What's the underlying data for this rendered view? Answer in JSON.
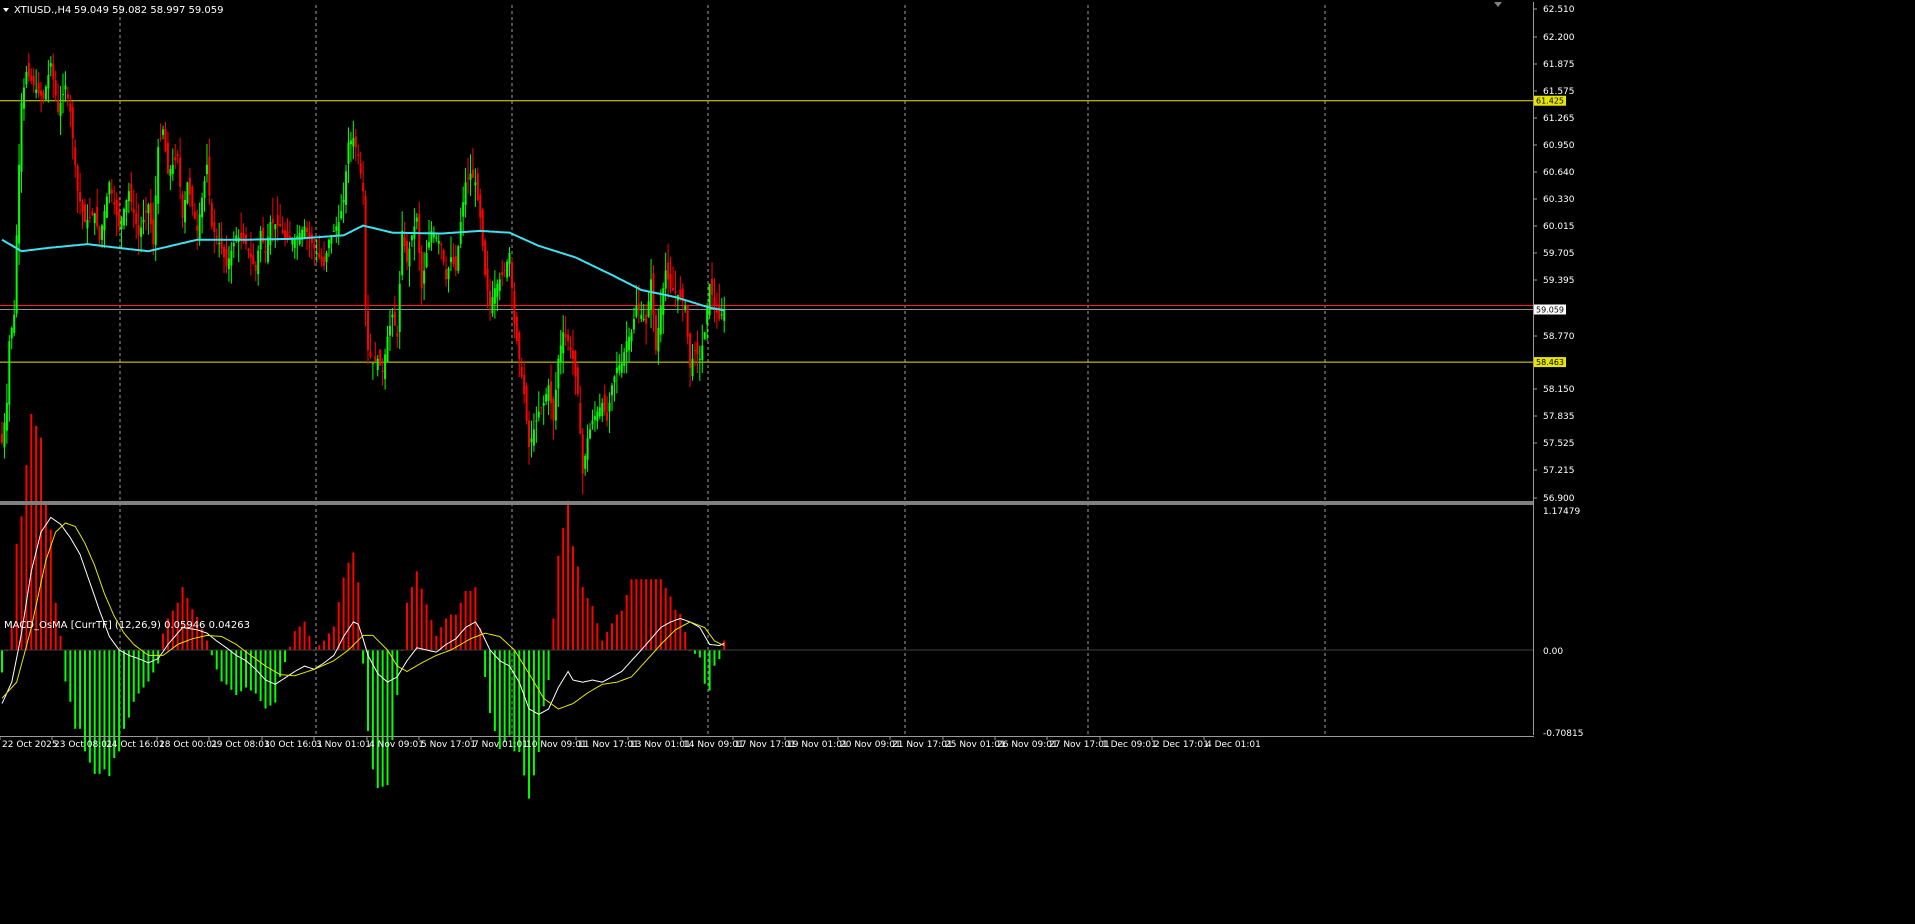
{
  "header": {
    "symbol_label": "XTIUSD.,H4",
    "ohlc": "59.049 59.082 58.997 59.059",
    "indicator_label": "MACD_OsMA [CurrTF] (12,26,9) 0.05946 0.04263"
  },
  "colors": {
    "background": "#000000",
    "bull": "#00ff00",
    "bear": "#ff0000",
    "ma": "#40e0f0",
    "level_line": "#e6e600",
    "price_line": "#ff2020",
    "grid": "#c8c8c8",
    "macd_line": "#ffffff",
    "signal_line": "#e6e600",
    "separator": "#808080"
  },
  "chart_data": [
    {
      "type": "candlestick",
      "name": "XTIUSD.,H4",
      "ylim": [
        56.9,
        62.51
      ],
      "y_ticks": [
        "62.510",
        "62.200",
        "61.875",
        "61.575",
        "61.265",
        "60.950",
        "60.640",
        "60.330",
        "60.015",
        "59.705",
        "59.395",
        "58.770",
        "58.150",
        "57.835",
        "57.525",
        "57.215",
        "56.900"
      ],
      "horizontal_levels": [
        {
          "value": 61.425,
          "label": "61.425"
        },
        {
          "value": 58.463,
          "label": "58.463"
        }
      ],
      "price_marker": {
        "value": 59.059,
        "label": "59.059"
      },
      "x_labels": [
        "22 Oct 2025",
        "23 Oct 08:01",
        "24 Oct 16:01",
        "28 Oct 00:01",
        "29 Oct 08:01",
        "30 Oct 16:01",
        "3 Nov 01:01",
        "4 Nov 09:01",
        "5 Nov 17:01",
        "7 Nov 01:01",
        "10 Nov 09:01",
        "11 Nov 17:01",
        "13 Nov 01:01",
        "14 Nov 09:01",
        "17 Nov 17:01",
        "19 Nov 01:01",
        "20 Nov 09:01",
        "21 Nov 17:01",
        "25 Nov 01:01",
        "26 Nov 09:01",
        "27 Nov 17:01",
        "1 Dec 09:01",
        "2 Dec 17:01",
        "4 Dec 01:01"
      ],
      "close_anchors": [
        [
          0,
          57.55
        ],
        [
          2,
          58.0
        ],
        [
          3,
          58.7
        ],
        [
          5,
          59.0
        ],
        [
          6,
          59.9
        ],
        [
          7,
          60.7
        ],
        [
          8,
          61.4
        ],
        [
          10,
          61.75
        ],
        [
          14,
          61.55
        ],
        [
          17,
          61.45
        ],
        [
          20,
          61.85
        ],
        [
          23,
          61.3
        ],
        [
          26,
          61.6
        ],
        [
          28,
          61.3
        ],
        [
          31,
          60.4
        ],
        [
          34,
          60.05
        ],
        [
          38,
          60.15
        ],
        [
          40,
          59.85
        ],
        [
          44,
          60.5
        ],
        [
          48,
          60.0
        ],
        [
          52,
          60.4
        ],
        [
          56,
          59.9
        ],
        [
          60,
          60.25
        ],
        [
          62,
          59.8
        ],
        [
          64,
          60.9
        ],
        [
          66,
          61.1
        ],
        [
          68,
          60.6
        ],
        [
          72,
          60.8
        ],
        [
          74,
          60.1
        ],
        [
          76,
          60.5
        ],
        [
          80,
          59.95
        ],
        [
          84,
          60.7
        ],
        [
          86,
          60.0
        ],
        [
          90,
          59.75
        ],
        [
          92,
          59.55
        ],
        [
          96,
          59.9
        ],
        [
          100,
          59.8
        ],
        [
          104,
          59.5
        ],
        [
          106,
          59.95
        ],
        [
          108,
          59.7
        ],
        [
          110,
          60.05
        ],
        [
          114,
          60.0
        ],
        [
          116,
          59.85
        ],
        [
          120,
          59.85
        ],
        [
          124,
          60.0
        ],
        [
          128,
          59.75
        ],
        [
          132,
          59.55
        ],
        [
          134,
          59.85
        ],
        [
          138,
          60.05
        ],
        [
          140,
          60.3
        ],
        [
          142,
          60.95
        ],
        [
          144,
          61.0
        ],
        [
          146,
          60.8
        ],
        [
          148,
          60.4
        ],
        [
          149,
          59.1
        ],
        [
          150,
          58.6
        ],
        [
          152,
          58.45
        ],
        [
          154,
          58.5
        ],
        [
          156,
          58.35
        ],
        [
          158,
          58.75
        ],
        [
          160,
          59.0
        ],
        [
          162,
          58.75
        ],
        [
          164,
          59.95
        ],
        [
          166,
          59.6
        ],
        [
          168,
          59.9
        ],
        [
          170,
          60.1
        ],
        [
          172,
          59.3
        ],
        [
          174,
          59.7
        ],
        [
          176,
          59.95
        ],
        [
          180,
          59.8
        ],
        [
          182,
          59.4
        ],
        [
          184,
          59.65
        ],
        [
          186,
          59.5
        ],
        [
          188,
          60.05
        ],
        [
          190,
          60.5
        ],
        [
          192,
          60.6
        ],
        [
          194,
          60.5
        ],
        [
          196,
          60.1
        ],
        [
          198,
          59.45
        ],
        [
          200,
          59.1
        ],
        [
          202,
          59.3
        ],
        [
          206,
          59.5
        ],
        [
          208,
          59.7
        ],
        [
          210,
          58.9
        ],
        [
          212,
          58.5
        ],
        [
          214,
          58.1
        ],
        [
          216,
          57.5
        ],
        [
          218,
          57.7
        ],
        [
          220,
          57.9
        ],
        [
          222,
          58.0
        ],
        [
          224,
          58.2
        ],
        [
          226,
          57.8
        ],
        [
          228,
          58.5
        ],
        [
          230,
          58.8
        ],
        [
          232,
          58.7
        ],
        [
          234,
          58.5
        ],
        [
          236,
          58.1
        ],
        [
          238,
          57.2
        ],
        [
          240,
          57.6
        ],
        [
          242,
          57.8
        ],
        [
          244,
          57.9
        ],
        [
          246,
          58.0
        ],
        [
          248,
          57.8
        ],
        [
          250,
          58.2
        ],
        [
          252,
          58.4
        ],
        [
          254,
          58.45
        ],
        [
          256,
          58.7
        ],
        [
          258,
          58.8
        ],
        [
          260,
          59.1
        ],
        [
          262,
          59.0
        ],
        [
          264,
          58.9
        ],
        [
          266,
          59.4
        ],
        [
          268,
          58.6
        ],
        [
          270,
          59.1
        ],
        [
          272,
          59.5
        ],
        [
          274,
          59.3
        ],
        [
          278,
          59.2
        ],
        [
          280,
          59.1
        ],
        [
          282,
          58.4
        ],
        [
          284,
          58.6
        ],
        [
          286,
          58.5
        ],
        [
          288,
          58.8
        ],
        [
          290,
          59.35
        ],
        [
          292,
          59.1
        ],
        [
          294,
          58.95
        ],
        [
          296,
          59.059
        ]
      ],
      "ma_anchors": [
        [
          0,
          59.85
        ],
        [
          8,
          59.72
        ],
        [
          20,
          59.76
        ],
        [
          35,
          59.8
        ],
        [
          50,
          59.75
        ],
        [
          60,
          59.72
        ],
        [
          80,
          59.85
        ],
        [
          100,
          59.85
        ],
        [
          120,
          59.86
        ],
        [
          140,
          59.9
        ],
        [
          148,
          60.01
        ],
        [
          160,
          59.93
        ],
        [
          180,
          59.92
        ],
        [
          196,
          59.95
        ],
        [
          208,
          59.93
        ],
        [
          220,
          59.78
        ],
        [
          235,
          59.65
        ],
        [
          250,
          59.45
        ],
        [
          262,
          59.28
        ],
        [
          276,
          59.2
        ],
        [
          290,
          59.08
        ],
        [
          296,
          59.05
        ]
      ],
      "n_bars": 297
    },
    {
      "type": "histogram+lines",
      "name": "MACD_OsMA [CurrTF] (12,26,9)",
      "ylim": [
        -0.70815,
        1.17479
      ],
      "y_ticks": [
        "1.17479",
        "0.00",
        "-0.70815"
      ],
      "values": {
        "macd": 0.05946,
        "signal": 0.04263
      },
      "macd_anchors": [
        [
          0,
          -0.5
        ],
        [
          4,
          -0.3
        ],
        [
          8,
          0.15
        ],
        [
          12,
          0.7
        ],
        [
          16,
          1.05
        ],
        [
          20,
          1.18
        ],
        [
          24,
          1.12
        ],
        [
          28,
          1.0
        ],
        [
          32,
          0.85
        ],
        [
          36,
          0.6
        ],
        [
          40,
          0.35
        ],
        [
          44,
          0.12
        ],
        [
          48,
          0.0
        ],
        [
          52,
          -0.05
        ],
        [
          56,
          -0.08
        ],
        [
          60,
          -0.12
        ],
        [
          64,
          -0.08
        ],
        [
          68,
          0.05
        ],
        [
          74,
          0.2
        ],
        [
          80,
          0.18
        ],
        [
          84,
          0.15
        ],
        [
          88,
          0.08
        ],
        [
          92,
          0.02
        ],
        [
          96,
          -0.05
        ],
        [
          100,
          -0.1
        ],
        [
          104,
          -0.18
        ],
        [
          108,
          -0.28
        ],
        [
          112,
          -0.32
        ],
        [
          116,
          -0.26
        ],
        [
          120,
          -0.2
        ],
        [
          124,
          -0.15
        ],
        [
          128,
          -0.18
        ],
        [
          132,
          -0.12
        ],
        [
          136,
          -0.05
        ],
        [
          140,
          0.12
        ],
        [
          144,
          0.25
        ],
        [
          146,
          0.23
        ],
        [
          148,
          0.1
        ],
        [
          150,
          -0.05
        ],
        [
          154,
          -0.22
        ],
        [
          158,
          -0.3
        ],
        [
          162,
          -0.25
        ],
        [
          166,
          -0.1
        ],
        [
          170,
          0.02
        ],
        [
          174,
          0.0
        ],
        [
          178,
          -0.02
        ],
        [
          182,
          0.05
        ],
        [
          186,
          0.1
        ],
        [
          190,
          0.2
        ],
        [
          194,
          0.25
        ],
        [
          196,
          0.18
        ],
        [
          200,
          0.0
        ],
        [
          204,
          -0.1
        ],
        [
          208,
          -0.15
        ],
        [
          212,
          -0.3
        ],
        [
          216,
          -0.55
        ],
        [
          220,
          -0.6
        ],
        [
          224,
          -0.55
        ],
        [
          228,
          -0.35
        ],
        [
          232,
          -0.2
        ],
        [
          234,
          -0.28
        ],
        [
          238,
          -0.3
        ],
        [
          242,
          -0.28
        ],
        [
          246,
          -0.3
        ],
        [
          250,
          -0.25
        ],
        [
          254,
          -0.2
        ],
        [
          258,
          -0.1
        ],
        [
          262,
          0.0
        ],
        [
          266,
          0.1
        ],
        [
          270,
          0.2
        ],
        [
          274,
          0.25
        ],
        [
          278,
          0.28
        ],
        [
          282,
          0.25
        ],
        [
          286,
          0.2
        ],
        [
          290,
          0.05
        ],
        [
          294,
          0.04
        ],
        [
          296,
          0.06
        ]
      ],
      "signal_anchors": [
        [
          0,
          -0.45
        ],
        [
          6,
          -0.3
        ],
        [
          12,
          0.2
        ],
        [
          18,
          0.8
        ],
        [
          22,
          1.05
        ],
        [
          26,
          1.13
        ],
        [
          30,
          1.1
        ],
        [
          34,
          0.95
        ],
        [
          38,
          0.75
        ],
        [
          42,
          0.5
        ],
        [
          46,
          0.3
        ],
        [
          50,
          0.15
        ],
        [
          54,
          0.05
        ],
        [
          60,
          -0.05
        ],
        [
          66,
          -0.05
        ],
        [
          72,
          0.05
        ],
        [
          78,
          0.1
        ],
        [
          84,
          0.13
        ],
        [
          90,
          0.12
        ],
        [
          96,
          0.05
        ],
        [
          102,
          -0.05
        ],
        [
          108,
          -0.15
        ],
        [
          114,
          -0.23
        ],
        [
          120,
          -0.24
        ],
        [
          128,
          -0.18
        ],
        [
          136,
          -0.1
        ],
        [
          142,
          0.0
        ],
        [
          148,
          0.13
        ],
        [
          152,
          0.13
        ],
        [
          158,
          0.0
        ],
        [
          162,
          -0.15
        ],
        [
          166,
          -0.2
        ],
        [
          172,
          -0.12
        ],
        [
          178,
          -0.05
        ],
        [
          184,
          0.0
        ],
        [
          192,
          0.1
        ],
        [
          198,
          0.15
        ],
        [
          204,
          0.12
        ],
        [
          210,
          0.0
        ],
        [
          216,
          -0.22
        ],
        [
          222,
          -0.45
        ],
        [
          228,
          -0.55
        ],
        [
          234,
          -0.5
        ],
        [
          240,
          -0.4
        ],
        [
          246,
          -0.32
        ],
        [
          252,
          -0.3
        ],
        [
          258,
          -0.25
        ],
        [
          264,
          -0.1
        ],
        [
          270,
          0.05
        ],
        [
          276,
          0.18
        ],
        [
          282,
          0.25
        ],
        [
          288,
          0.2
        ],
        [
          292,
          0.08
        ],
        [
          296,
          0.04
        ]
      ]
    }
  ]
}
